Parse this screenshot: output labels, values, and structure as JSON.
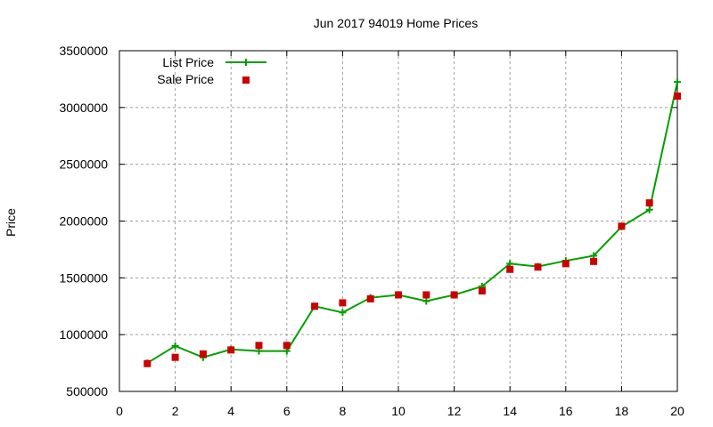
{
  "chart_data": {
    "type": "line",
    "title": "Jun 2017 94019 Home Prices",
    "xlabel": "",
    "ylabel": "Price",
    "xlim": [
      0,
      20
    ],
    "ylim": [
      500000,
      3500000
    ],
    "x_ticks": [
      "0",
      "2",
      "4",
      "6",
      "8",
      "10",
      "12",
      "14",
      "16",
      "18",
      "20"
    ],
    "y_ticks": [
      "500000",
      "1000000",
      "1500000",
      "2000000",
      "2500000",
      "3000000",
      "3500000"
    ],
    "grid": true,
    "legend_position": "top-left",
    "x": [
      1,
      2,
      3,
      4,
      5,
      6,
      7,
      8,
      9,
      10,
      11,
      12,
      13,
      14,
      15,
      16,
      17,
      18,
      19,
      20
    ],
    "series": [
      {
        "name": "List Price",
        "style": "line+cross",
        "color": "#00a000",
        "values": [
          750000,
          900000,
          800000,
          870000,
          855000,
          855000,
          1250000,
          1195000,
          1325000,
          1350000,
          1295000,
          1350000,
          1425000,
          1625000,
          1600000,
          1650000,
          1695000,
          1950000,
          2100000,
          3225000
        ]
      },
      {
        "name": "Sale Price",
        "style": "square-points",
        "color": "#cc0000",
        "values": [
          745000,
          800000,
          830000,
          865000,
          905000,
          905000,
          1250000,
          1280000,
          1315000,
          1350000,
          1350000,
          1350000,
          1385000,
          1575000,
          1595000,
          1625000,
          1645000,
          1955000,
          2160000,
          3100000
        ]
      }
    ]
  }
}
